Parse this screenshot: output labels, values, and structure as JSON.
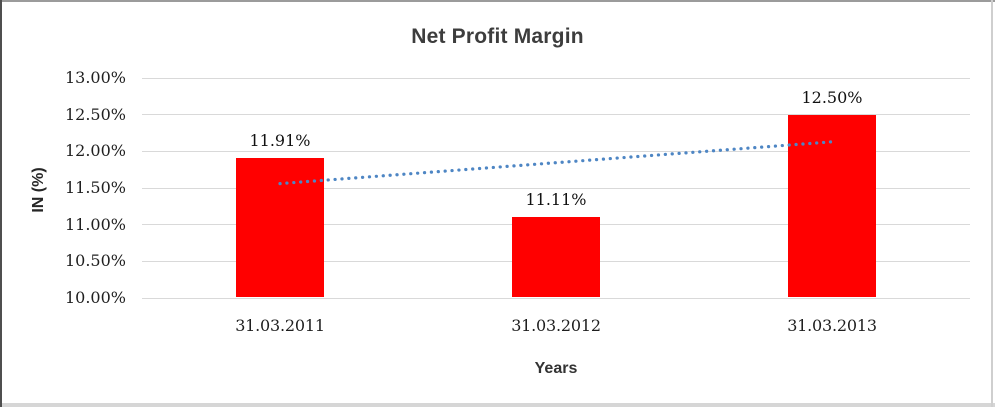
{
  "chart_data": {
    "type": "bar",
    "title": "Net Profit Margin",
    "xlabel": "Years",
    "ylabel": "IN (%)",
    "categories": [
      "31.03.2011",
      "31.03.2012",
      "31.03.2013"
    ],
    "series": [
      {
        "name": "Net Profit Margin",
        "values": [
          11.91,
          11.11,
          12.5
        ]
      }
    ],
    "data_labels": [
      "11.91%",
      "11.11%",
      "12.50%"
    ],
    "ylim": [
      10,
      13
    ],
    "yticks": [
      {
        "value": 13,
        "label": "13.00%"
      },
      {
        "value": 12.5,
        "label": "12.50%"
      },
      {
        "value": 12,
        "label": "12.00%"
      },
      {
        "value": 11.5,
        "label": "11.50%"
      },
      {
        "value": 11,
        "label": "11.00%"
      },
      {
        "value": 10.5,
        "label": "10.50%"
      },
      {
        "value": 10,
        "label": "10.00%"
      }
    ],
    "grid": true,
    "legend": "none",
    "colors": {
      "bar": "#FF0000",
      "trendline": "#4E86C4",
      "gridline": "#D9D9D9",
      "title_text": "#3D3D3D",
      "tick_text": "#1F1F1F"
    },
    "trendline": {
      "type": "linear",
      "style": "dotted",
      "start_value": 11.56,
      "end_value": 12.13
    }
  }
}
